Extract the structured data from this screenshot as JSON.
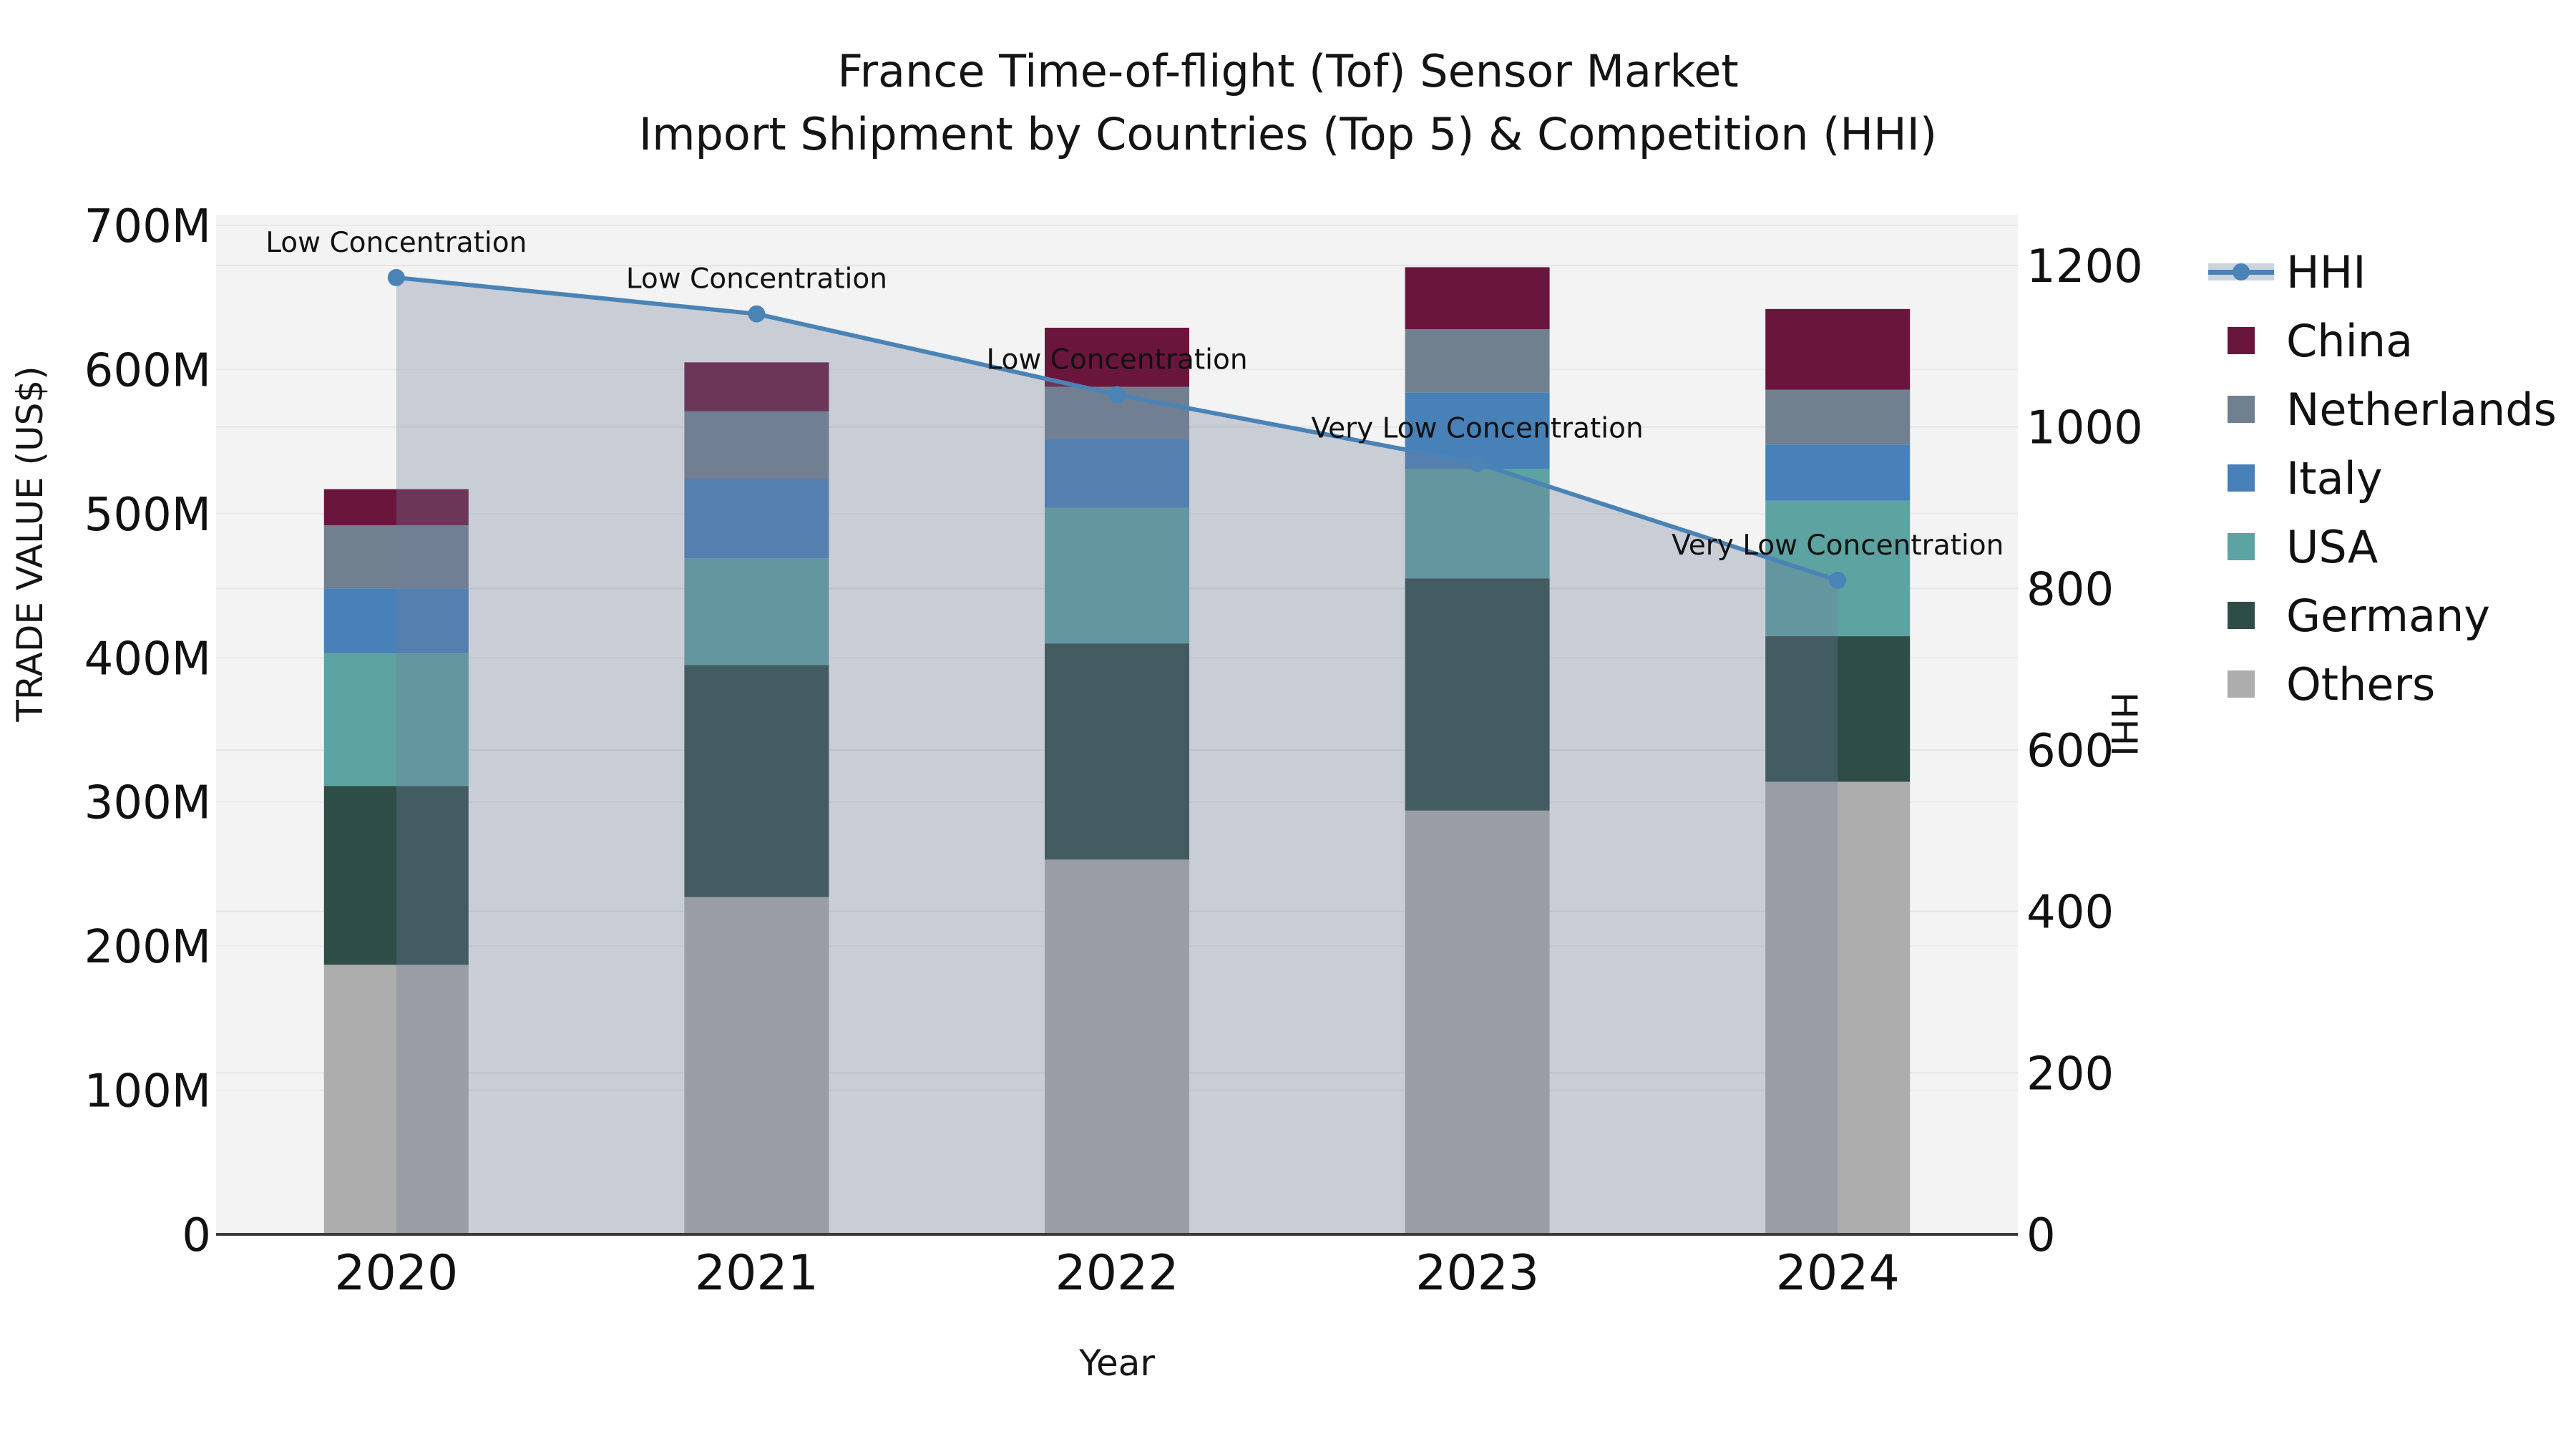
{
  "figure": {
    "title_line1": "France Time-of-flight (Tof) Sensor Market",
    "title_line2": "Import Shipment by Countries (Top 5) & Competition (HHI)",
    "background": "#ffffff",
    "plot_background": "#f3f3f4",
    "gridline_color_left": "#e9eaeb",
    "gridline_color_right": "#e2e4e6",
    "axis_line_color": "#3a3a3a",
    "text_color": "#141414"
  },
  "axes": {
    "x_label": "Year",
    "y_left_label": "TRADE VALUE (US$)",
    "y_right_label": "HHI",
    "y_left_ticks": [
      "0",
      "100M",
      "200M",
      "300M",
      "400M",
      "500M",
      "600M",
      "700M"
    ],
    "y_left_tick_values": [
      0,
      100,
      200,
      300,
      400,
      500,
      600,
      700
    ],
    "y_left_max": 700,
    "y_right_ticks": [
      "0",
      "200",
      "400",
      "600",
      "800",
      "1000",
      "1200"
    ],
    "y_right_tick_values": [
      0,
      200,
      400,
      600,
      800,
      1000,
      1200
    ],
    "y_right_max": 1200
  },
  "chart_data": {
    "type": "bar",
    "stacked": true,
    "title": "France Time-of-flight (Tof) Sensor Market — Import Shipment by Countries (Top 5) & Competition (HHI)",
    "xlabel": "Year",
    "ylabel": "TRADE VALUE (US$)",
    "ylabel_right": "HHI",
    "unit": "M US$ (trade value, millions)",
    "categories": [
      "2020",
      "2021",
      "2022",
      "2023",
      "2024"
    ],
    "ylim_left": [
      0,
      700
    ],
    "ylim_right": [
      0,
      1200
    ],
    "grid": true,
    "legend_position": "right",
    "series": [
      {
        "name": "Others",
        "color": "#adadad",
        "values": [
          187,
          234,
          260,
          294,
          314
        ]
      },
      {
        "name": "Germany",
        "color": "#2f4d47",
        "values": [
          124,
          161,
          150,
          161,
          101
        ]
      },
      {
        "name": "USA",
        "color": "#5da3a1",
        "values": [
          92,
          74,
          94,
          76,
          94
        ]
      },
      {
        "name": "Italy",
        "color": "#4781b8",
        "values": [
          45,
          55,
          48,
          53,
          39
        ]
      },
      {
        "name": "Netherlands",
        "color": "#70808f",
        "values": [
          44,
          47,
          36,
          44,
          38
        ]
      },
      {
        "name": "China",
        "color": "#6a163c",
        "values": [
          25,
          34,
          41,
          43,
          56
        ]
      }
    ],
    "bar_totals": [
      517,
      605,
      629,
      671,
      642
    ],
    "line_overlay": {
      "name": "HHI",
      "axis": "right",
      "color": "#4a83b5",
      "area_fill": "rgba(112,124,152,0.32)",
      "values": [
        1185,
        1140,
        1040,
        955,
        810
      ],
      "annotations": [
        "Low Concentration",
        "Low Concentration",
        "Low Concentration",
        "Very Low Concentration",
        "Very Low Concentration"
      ]
    }
  },
  "legend": {
    "items": [
      {
        "label": "HHI",
        "type": "line",
        "color": "#4a83b5",
        "band": "#ccd4df"
      },
      {
        "label": "China",
        "type": "swatch",
        "color": "#6a163c"
      },
      {
        "label": "Netherlands",
        "type": "swatch",
        "color": "#70808f"
      },
      {
        "label": "Italy",
        "type": "swatch",
        "color": "#4781b8"
      },
      {
        "label": "USA",
        "type": "swatch",
        "color": "#5da3a1"
      },
      {
        "label": "Germany",
        "type": "swatch",
        "color": "#2f4d47"
      },
      {
        "label": "Others",
        "type": "swatch",
        "color": "#adadad"
      }
    ]
  }
}
